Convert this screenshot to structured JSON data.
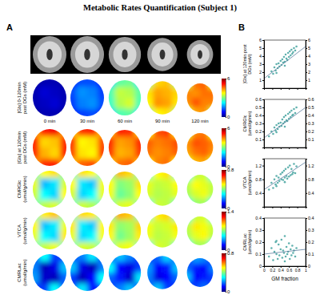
{
  "title": "Metabolic Rates Quantification (Subject 1)",
  "panels": [
    "A",
    "B"
  ],
  "chart_data": [
    {
      "type": "heatmap",
      "ylabel": [
        "[Glx] 0-120min",
        "post DGs (mM)"
      ],
      "labels": [
        "0 min",
        "30 min",
        "60 min",
        "90 min",
        "120 min"
      ],
      "cells": [
        [
          [
            0.2,
            0.3,
            0.3,
            0.2
          ],
          [
            0.3,
            0.5,
            0.4,
            0.3
          ],
          [
            0.3,
            0.4,
            0.5,
            0.3
          ],
          [
            0.2,
            0.3,
            0.3,
            0.2
          ]
        ],
        [
          [
            0.8,
            1.2,
            1.2,
            0.8
          ],
          [
            1.2,
            1.6,
            1.5,
            1.1
          ],
          [
            1.1,
            1.5,
            1.6,
            1.2
          ],
          [
            0.8,
            1.1,
            1.2,
            0.8
          ]
        ],
        [
          [
            2.0,
            2.8,
            2.9,
            2.1
          ],
          [
            2.7,
            3.4,
            3.3,
            2.8
          ],
          [
            2.6,
            3.3,
            3.5,
            2.7
          ],
          [
            2.0,
            2.7,
            2.8,
            2.1
          ]
        ],
        [
          [
            3.0,
            4.0,
            4.1,
            3.1
          ],
          [
            3.9,
            4.3,
            4.2,
            4.0
          ],
          [
            3.8,
            4.4,
            4.3,
            3.9
          ],
          [
            3.0,
            3.8,
            3.9,
            3.1
          ]
        ],
        [
          [
            3.4,
            4.6,
            4.7,
            3.5
          ],
          [
            4.5,
            4.4,
            4.6,
            4.6
          ],
          [
            4.4,
            4.8,
            4.5,
            4.5
          ],
          [
            3.5,
            4.3,
            4.4,
            3.4
          ]
        ]
      ],
      "colorbar": {
        "range": [
          0,
          6
        ],
        "ticks": [
          0,
          6
        ]
      }
    },
    {
      "type": "heatmap",
      "ylabel": [
        "[Glx] at 120min",
        "post DGs (mM)"
      ],
      "cells": [
        [
          [
            4.2,
            5.2,
            5.3,
            4.3
          ],
          [
            5.1,
            4.0,
            4.1,
            5.0
          ],
          [
            5.0,
            4.2,
            4.0,
            5.1
          ],
          [
            4.3,
            5.0,
            5.1,
            4.2
          ]
        ],
        [
          [
            4.0,
            5.0,
            5.1,
            4.1
          ],
          [
            4.9,
            3.8,
            3.9,
            4.8
          ],
          [
            4.8,
            3.9,
            3.8,
            4.9
          ],
          [
            4.1,
            4.7,
            4.8,
            4.0
          ]
        ],
        [
          [
            4.1,
            5.1,
            5.0,
            4.0
          ],
          [
            5.0,
            4.3,
            4.4,
            5.0
          ],
          [
            4.9,
            4.2,
            4.3,
            4.9
          ],
          [
            4.0,
            4.6,
            4.7,
            4.1
          ]
        ],
        [
          [
            3.8,
            4.8,
            4.9,
            3.9
          ],
          [
            4.7,
            4.5,
            4.6,
            4.8
          ],
          [
            4.6,
            4.4,
            4.5,
            4.7
          ],
          [
            3.9,
            4.5,
            4.6,
            3.8
          ]
        ],
        [
          [
            3.5,
            4.5,
            4.6,
            3.6
          ],
          [
            4.4,
            4.8,
            4.7,
            4.5
          ],
          [
            4.3,
            4.6,
            4.7,
            4.4
          ],
          [
            3.6,
            4.2,
            4.3,
            3.5
          ]
        ]
      ],
      "colorbar": {
        "range": [
          0,
          6
        ],
        "ticks": [
          0,
          6
        ]
      }
    },
    {
      "type": "heatmap",
      "ylabel": [
        "CMRGlc",
        "(umol/g/min)"
      ],
      "cells": [
        [
          [
            0.35,
            0.5,
            0.52,
            0.36
          ],
          [
            0.48,
            0.25,
            0.28,
            0.47
          ],
          [
            0.46,
            0.3,
            0.27,
            0.5
          ],
          [
            0.35,
            0.45,
            0.47,
            0.34
          ]
        ],
        [
          [
            0.33,
            0.52,
            0.5,
            0.34
          ],
          [
            0.5,
            0.28,
            0.26,
            0.49
          ],
          [
            0.47,
            0.27,
            0.3,
            0.48
          ],
          [
            0.34,
            0.46,
            0.44,
            0.33
          ]
        ],
        [
          [
            0.36,
            0.55,
            0.53,
            0.35
          ],
          [
            0.5,
            0.4,
            0.42,
            0.52
          ],
          [
            0.49,
            0.38,
            0.41,
            0.5
          ],
          [
            0.35,
            0.47,
            0.48,
            0.36
          ]
        ],
        [
          [
            0.34,
            0.5,
            0.52,
            0.35
          ],
          [
            0.48,
            0.45,
            0.46,
            0.5
          ],
          [
            0.47,
            0.44,
            0.45,
            0.48
          ],
          [
            0.33,
            0.46,
            0.45,
            0.34
          ]
        ],
        [
          [
            0.3,
            0.45,
            0.46,
            0.31
          ],
          [
            0.44,
            0.5,
            0.48,
            0.45
          ],
          [
            0.43,
            0.47,
            0.49,
            0.44
          ],
          [
            0.31,
            0.42,
            0.43,
            0.3
          ]
        ]
      ],
      "colorbar": {
        "range": [
          0,
          0.8
        ],
        "ticks": [
          0,
          0.8
        ]
      }
    },
    {
      "type": "heatmap",
      "ylabel": [
        "VTCA",
        "(umol/g/min)"
      ],
      "cells": [
        [
          [
            0.6,
            0.9,
            0.95,
            0.62
          ],
          [
            0.88,
            0.45,
            0.5,
            0.85
          ],
          [
            0.84,
            0.52,
            0.48,
            0.9
          ],
          [
            0.6,
            0.8,
            0.85,
            0.6
          ]
        ],
        [
          [
            0.58,
            0.92,
            0.9,
            0.6
          ],
          [
            0.9,
            0.5,
            0.46,
            0.88
          ],
          [
            0.85,
            0.48,
            0.52,
            0.86
          ],
          [
            0.6,
            0.82,
            0.8,
            0.58
          ]
        ],
        [
          [
            0.62,
            0.98,
            0.95,
            0.6
          ],
          [
            0.9,
            0.72,
            0.75,
            0.93
          ],
          [
            0.88,
            0.68,
            0.74,
            0.9
          ],
          [
            0.6,
            0.84,
            0.86,
            0.62
          ]
        ],
        [
          [
            0.6,
            0.9,
            0.93,
            0.62
          ],
          [
            0.86,
            0.8,
            0.82,
            0.9
          ],
          [
            0.85,
            0.78,
            0.8,
            0.86
          ],
          [
            0.58,
            0.82,
            0.8,
            0.6
          ]
        ],
        [
          [
            0.55,
            0.8,
            0.82,
            0.56
          ],
          [
            0.78,
            0.9,
            0.86,
            0.8
          ],
          [
            0.76,
            0.84,
            0.88,
            0.78
          ],
          [
            0.55,
            0.75,
            0.76,
            0.54
          ]
        ]
      ],
      "colorbar": {
        "range": [
          0,
          1.4
        ],
        "ticks": [
          0,
          1.4
        ]
      }
    },
    {
      "type": "heatmap",
      "ylabel": [
        "CMRLac",
        "(umol/g/min)"
      ],
      "cells": [
        [
          [
            0.1,
            0.3,
            0.15,
            0.1
          ],
          [
            0.2,
            0.05,
            0.08,
            0.25
          ],
          [
            0.22,
            0.06,
            0.05,
            0.18
          ],
          [
            0.1,
            0.15,
            0.3,
            0.1
          ]
        ],
        [
          [
            0.12,
            0.2,
            0.28,
            0.1
          ],
          [
            0.25,
            0.08,
            0.05,
            0.2
          ],
          [
            0.15,
            0.05,
            0.1,
            0.3
          ],
          [
            0.1,
            0.28,
            0.12,
            0.1
          ]
        ],
        [
          [
            0.1,
            0.25,
            0.2,
            0.12
          ],
          [
            0.3,
            0.1,
            0.08,
            0.15
          ],
          [
            0.18,
            0.12,
            0.06,
            0.28
          ],
          [
            0.1,
            0.2,
            0.25,
            0.1
          ]
        ],
        [
          [
            0.1,
            0.18,
            0.26,
            0.1
          ],
          [
            0.22,
            0.1,
            0.12,
            0.25
          ],
          [
            0.2,
            0.08,
            0.1,
            0.18
          ],
          [
            0.12,
            0.25,
            0.15,
            0.1
          ]
        ],
        [
          [
            0.1,
            0.22,
            0.2,
            0.1
          ],
          [
            0.18,
            0.12,
            0.1,
            0.2
          ],
          [
            0.25,
            0.1,
            0.12,
            0.15
          ],
          [
            0.1,
            0.15,
            0.18,
            0.1
          ]
        ]
      ],
      "colorbar": {
        "range": [
          0,
          0.8
        ],
        "ticks": [
          0,
          0.8
        ]
      }
    },
    {
      "type": "scatter",
      "ylabel": [
        "[Glx] at 120min post",
        "DGs (mM)"
      ],
      "color": "#3a9e9a",
      "tick_labels": "y",
      "x": [
        0.12,
        0.18,
        0.22,
        0.25,
        0.28,
        0.3,
        0.33,
        0.35,
        0.37,
        0.4,
        0.42,
        0.44,
        0.46,
        0.48,
        0.5,
        0.52,
        0.54,
        0.56,
        0.58,
        0.6,
        0.62,
        0.64,
        0.66,
        0.68,
        0.7,
        0.72,
        0.75,
        0.78,
        0.3,
        0.5
      ],
      "y": [
        1.4,
        2.1,
        1.8,
        2.6,
        2.2,
        3.0,
        2.5,
        3.1,
        2.7,
        3.4,
        2.9,
        3.6,
        3.2,
        3.9,
        3.3,
        4.2,
        3.7,
        3.5,
        4.4,
        3.9,
        4.6,
        4.1,
        4.8,
        4.3,
        4.5,
        5.0,
        4.7,
        5.2,
        1.9,
        2.8
      ],
      "trend": {
        "x": [
          0,
          1
        ],
        "y": [
          1.2,
          5.2
        ]
      },
      "xlim": [
        0,
        1
      ],
      "xticks": [
        0,
        0.2,
        0.4,
        0.6,
        0.8,
        1
      ],
      "ylim": [
        0,
        6
      ],
      "yticks": [
        1,
        2,
        3,
        4,
        5,
        6
      ]
    },
    {
      "type": "scatter",
      "ylabel": [
        "CMRGlc",
        "(umol/g/min)"
      ],
      "color": "#3a9e9a",
      "tick_labels": "y",
      "x": [
        0.12,
        0.18,
        0.22,
        0.25,
        0.28,
        0.3,
        0.33,
        0.35,
        0.37,
        0.4,
        0.42,
        0.44,
        0.46,
        0.48,
        0.5,
        0.52,
        0.54,
        0.56,
        0.58,
        0.6,
        0.62,
        0.64,
        0.66,
        0.68,
        0.7,
        0.72,
        0.75,
        0.78,
        0.3,
        0.5
      ],
      "y": [
        0.14,
        0.2,
        0.17,
        0.25,
        0.21,
        0.28,
        0.23,
        0.3,
        0.26,
        0.31,
        0.27,
        0.35,
        0.3,
        0.38,
        0.32,
        0.4,
        0.34,
        0.33,
        0.42,
        0.36,
        0.44,
        0.38,
        0.46,
        0.4,
        0.41,
        0.48,
        0.43,
        0.5,
        0.19,
        0.26
      ],
      "trend": {
        "x": [
          0,
          1
        ],
        "y": [
          0.12,
          0.5
        ]
      },
      "xlim": [
        0,
        1
      ],
      "xticks": [
        0,
        0.2,
        0.4,
        0.6,
        0.8,
        1
      ],
      "ylim": [
        0,
        0.6
      ],
      "yticks": [
        0.1,
        0.2,
        0.3,
        0.4,
        0.5,
        0.6
      ]
    },
    {
      "type": "scatter",
      "ylabel": [
        "VTCA",
        "(umol/g/min)"
      ],
      "color": "#3a9e9a",
      "tick_labels": "y",
      "x": [
        0.12,
        0.18,
        0.22,
        0.25,
        0.28,
        0.3,
        0.33,
        0.35,
        0.37,
        0.4,
        0.42,
        0.44,
        0.46,
        0.48,
        0.5,
        0.52,
        0.54,
        0.56,
        0.58,
        0.6,
        0.62,
        0.64,
        0.66,
        0.68,
        0.7,
        0.72,
        0.75,
        0.78,
        0.3,
        0.5
      ],
      "y": [
        0.5,
        0.7,
        0.55,
        0.8,
        0.65,
        0.9,
        0.7,
        0.85,
        0.75,
        0.95,
        0.8,
        1.0,
        0.78,
        1.05,
        0.85,
        1.1,
        0.9,
        0.82,
        1.15,
        0.88,
        1.2,
        0.92,
        1.1,
        0.95,
        1.0,
        1.25,
        0.98,
        1.18,
        0.6,
        0.72
      ],
      "trend": {
        "x": [
          0,
          1
        ],
        "y": [
          0.5,
          1.3
        ]
      },
      "xlim": [
        0,
        1
      ],
      "xticks": [
        0,
        0.2,
        0.4,
        0.6,
        0.8,
        1
      ],
      "ylim": [
        0,
        1.4
      ],
      "yticks": [
        0.4,
        0.8,
        1.2
      ]
    },
    {
      "type": "scatter",
      "ylabel": [
        "CMRLac",
        "(umol/g/min)"
      ],
      "xlabel": "GM fraction",
      "color": "#3a9e9a",
      "x": [
        0.12,
        0.18,
        0.22,
        0.25,
        0.28,
        0.3,
        0.33,
        0.35,
        0.37,
        0.4,
        0.42,
        0.44,
        0.46,
        0.48,
        0.5,
        0.52,
        0.54,
        0.56,
        0.58,
        0.6,
        0.62,
        0.64,
        0.66,
        0.68,
        0.7,
        0.72,
        0.75,
        0.78,
        0.3,
        0.5
      ],
      "y": [
        0.08,
        0.15,
        0.05,
        0.12,
        0.2,
        0.1,
        0.06,
        0.18,
        0.09,
        0.14,
        0.22,
        0.07,
        0.13,
        0.11,
        0.25,
        0.08,
        0.16,
        0.1,
        0.12,
        0.19,
        0.06,
        0.14,
        0.09,
        0.17,
        0.11,
        0.13,
        0.08,
        0.15,
        0.21,
        0.04
      ],
      "trend": {
        "x": [
          0,
          1
        ],
        "y": [
          0.1,
          0.14
        ]
      },
      "xlim": [
        0,
        1
      ],
      "xticks": [
        0,
        0.2,
        0.4,
        0.6,
        0.8,
        1
      ],
      "ylim": [
        0,
        0.4
      ],
      "yticks": [
        0,
        0.1,
        0.2,
        0.3,
        0.4
      ]
    }
  ]
}
